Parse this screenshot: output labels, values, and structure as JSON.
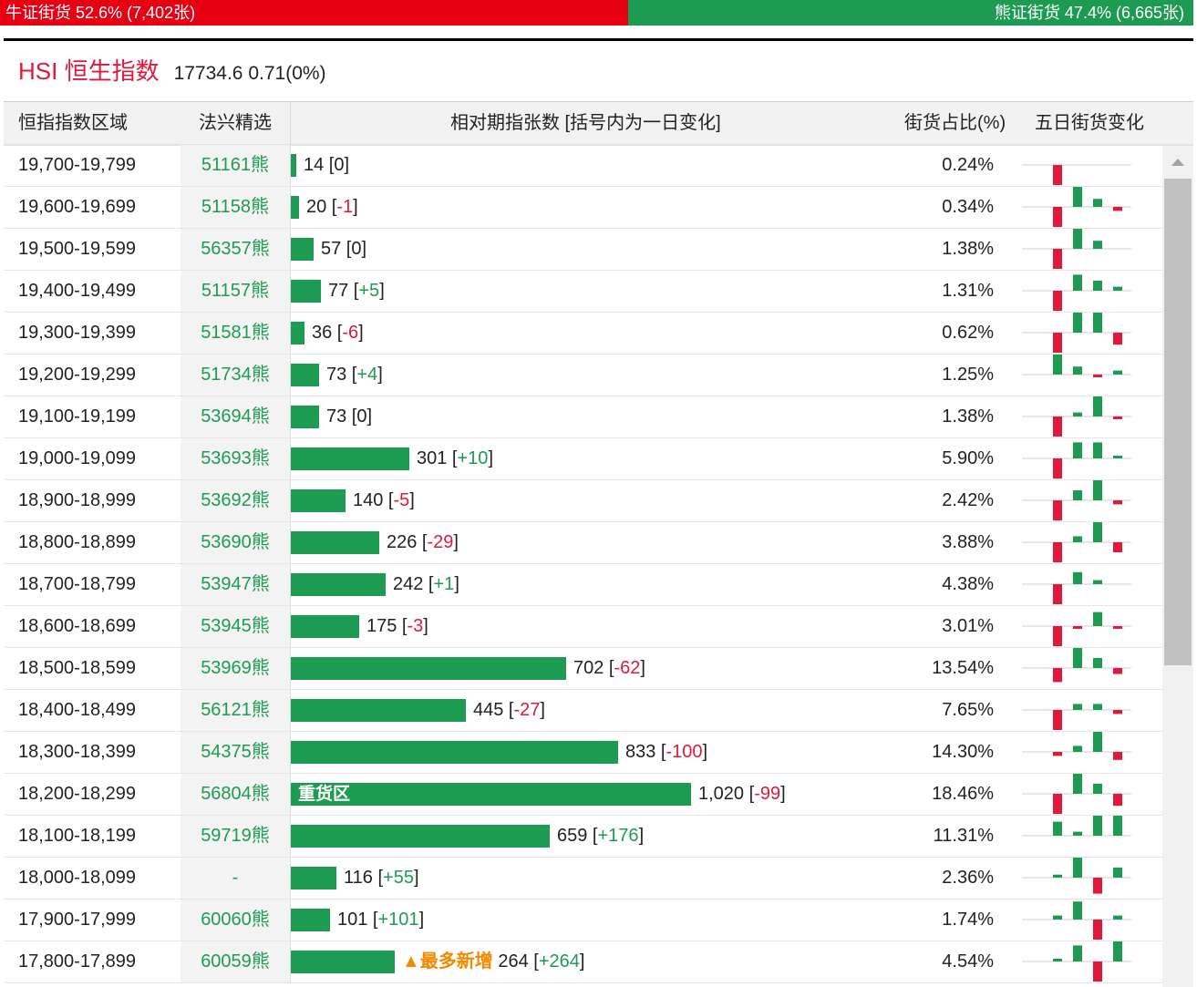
{
  "ratio": {
    "bull_label": "牛证街货 52.6% (7,402张)",
    "bull_pct": 52.6,
    "bear_label": "熊证街货 47.4% (6,665张)",
    "bear_pct": 47.4
  },
  "index": {
    "name": "HSI 恒生指数",
    "value": "17734.6 0.71(0%)"
  },
  "table": {
    "headers": {
      "range": "恒指指数区域",
      "pick": "法兴精选",
      "rel": "相对期指张数 [括号内为一日变化]",
      "share": "街货占比(%)",
      "five_day": "五日街货变化"
    },
    "bar_max": 1020,
    "rows": [
      {
        "range": "19,700-19,799",
        "code": "51161熊",
        "contracts": 14,
        "contracts_text": "14",
        "change": "0",
        "share": "0.24%",
        "spark": [
          -1,
          0,
          0,
          0,
          0
        ]
      },
      {
        "range": "19,600-19,699",
        "code": "51158熊",
        "contracts": 20,
        "contracts_text": "20",
        "change": "-1",
        "share": "0.34%",
        "spark": [
          -1,
          1,
          0.4,
          -0.2,
          0
        ]
      },
      {
        "range": "19,500-19,599",
        "code": "56357熊",
        "contracts": 57,
        "contracts_text": "57",
        "change": "0",
        "share": "1.38%",
        "spark": [
          -1,
          1,
          0.4,
          0,
          0
        ]
      },
      {
        "range": "19,400-19,499",
        "code": "51157熊",
        "contracts": 77,
        "contracts_text": "77",
        "change": "+5",
        "share": "1.31%",
        "spark": [
          -1,
          0.8,
          0.5,
          0.2,
          0
        ]
      },
      {
        "range": "19,300-19,399",
        "code": "51581熊",
        "contracts": 36,
        "contracts_text": "36",
        "change": "-6",
        "share": "0.62%",
        "spark": [
          -1,
          1,
          1,
          -0.6,
          0
        ]
      },
      {
        "range": "19,200-19,299",
        "code": "51734熊",
        "contracts": 73,
        "contracts_text": "73",
        "change": "+4",
        "share": "1.25%",
        "spark": [
          1,
          0.4,
          -0.1,
          0.2,
          0
        ]
      },
      {
        "range": "19,100-19,199",
        "code": "53694熊",
        "contracts": 73,
        "contracts_text": "73",
        "change": "0",
        "share": "1.38%",
        "spark": [
          -1,
          0.2,
          1,
          -0.1,
          0
        ]
      },
      {
        "range": "19,000-19,099",
        "code": "53693熊",
        "contracts": 301,
        "contracts_text": "301",
        "change": "+10",
        "share": "5.90%",
        "spark": [
          -1,
          0.8,
          0.8,
          0.05,
          0
        ]
      },
      {
        "range": "18,900-18,999",
        "code": "53692熊",
        "contracts": 140,
        "contracts_text": "140",
        "change": "-5",
        "share": "2.42%",
        "spark": [
          -1,
          0.5,
          1,
          -0.2,
          0
        ]
      },
      {
        "range": "18,800-18,899",
        "code": "53690熊",
        "contracts": 226,
        "contracts_text": "226",
        "change": "-29",
        "share": "3.88%",
        "spark": [
          -1,
          0.3,
          1,
          -0.5,
          0
        ]
      },
      {
        "range": "18,700-18,799",
        "code": "53947熊",
        "contracts": 242,
        "contracts_text": "242",
        "change": "+1",
        "share": "4.38%",
        "spark": [
          -1,
          0.6,
          0.2,
          0,
          0
        ]
      },
      {
        "range": "18,600-18,699",
        "code": "53945熊",
        "contracts": 175,
        "contracts_text": "175",
        "change": "-3",
        "share": "3.01%",
        "spark": [
          -1,
          -0.1,
          0.7,
          -0.1,
          0
        ]
      },
      {
        "range": "18,500-18,599",
        "code": "53969熊",
        "contracts": 702,
        "contracts_text": "702",
        "change": "-62",
        "share": "13.54%",
        "spark": [
          -0.7,
          1,
          0.5,
          -0.3,
          0
        ]
      },
      {
        "range": "18,400-18,499",
        "code": "56121熊",
        "contracts": 445,
        "contracts_text": "445",
        "change": "-27",
        "share": "7.65%",
        "spark": [
          -1,
          0.3,
          0.3,
          -0.2,
          0
        ]
      },
      {
        "range": "18,300-18,399",
        "code": "54375熊",
        "contracts": 833,
        "contracts_text": "833",
        "change": "-100",
        "share": "14.30%",
        "spark": [
          -0.2,
          0.3,
          1,
          -0.4,
          0
        ]
      },
      {
        "range": "18,200-18,299",
        "code": "56804熊",
        "contracts": 1020,
        "contracts_text": "1,020",
        "change": "-99",
        "share": "18.46%",
        "bar_text": "重货区",
        "spark": [
          -1,
          1,
          0.5,
          -0.6,
          0
        ]
      },
      {
        "range": "18,100-18,199",
        "code": "59719熊",
        "contracts": 659,
        "contracts_text": "659",
        "change": "+176",
        "share": "11.31%",
        "spark": [
          0.7,
          0.2,
          1,
          1,
          0
        ]
      },
      {
        "range": "18,000-18,099",
        "code": "-",
        "contracts": 116,
        "contracts_text": "116",
        "change": "+55",
        "share": "2.36%",
        "spark": [
          0.15,
          1,
          -0.8,
          0.5,
          0
        ]
      },
      {
        "range": "17,900-17,999",
        "code": "60060熊",
        "contracts": 101,
        "contracts_text": "101",
        "change": "+101",
        "share": "1.74%",
        "spark": [
          0.2,
          0.9,
          -1,
          0.2,
          0
        ]
      },
      {
        "range": "17,800-17,899",
        "code": "60059熊",
        "contracts": 264,
        "contracts_text": "264",
        "change": "+264",
        "share": "4.54%",
        "note": "▲最多新增",
        "spark": [
          0.1,
          0.8,
          -1,
          1,
          0
        ]
      }
    ]
  },
  "colors": {
    "bull": "#e60012",
    "bear": "#1e9b53",
    "positive": "#1e9b53",
    "negative": "#e0193c",
    "note": "#f08a00"
  }
}
